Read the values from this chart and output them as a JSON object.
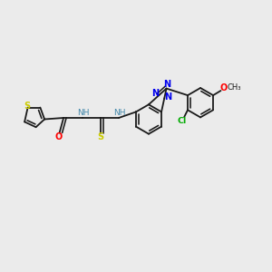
{
  "bg_color": "#ebebeb",
  "bond_color": "#1a1a1a",
  "bond_width": 1.3,
  "atom_colors": {
    "S": "#cccc00",
    "O": "#ff0000",
    "N": "#0000ee",
    "Cl": "#00aa00",
    "NH": "#4488aa",
    "S_thio": "#cccc00",
    "C": "#1a1a1a"
  },
  "figsize": [
    3.0,
    3.0
  ],
  "dpi": 100
}
